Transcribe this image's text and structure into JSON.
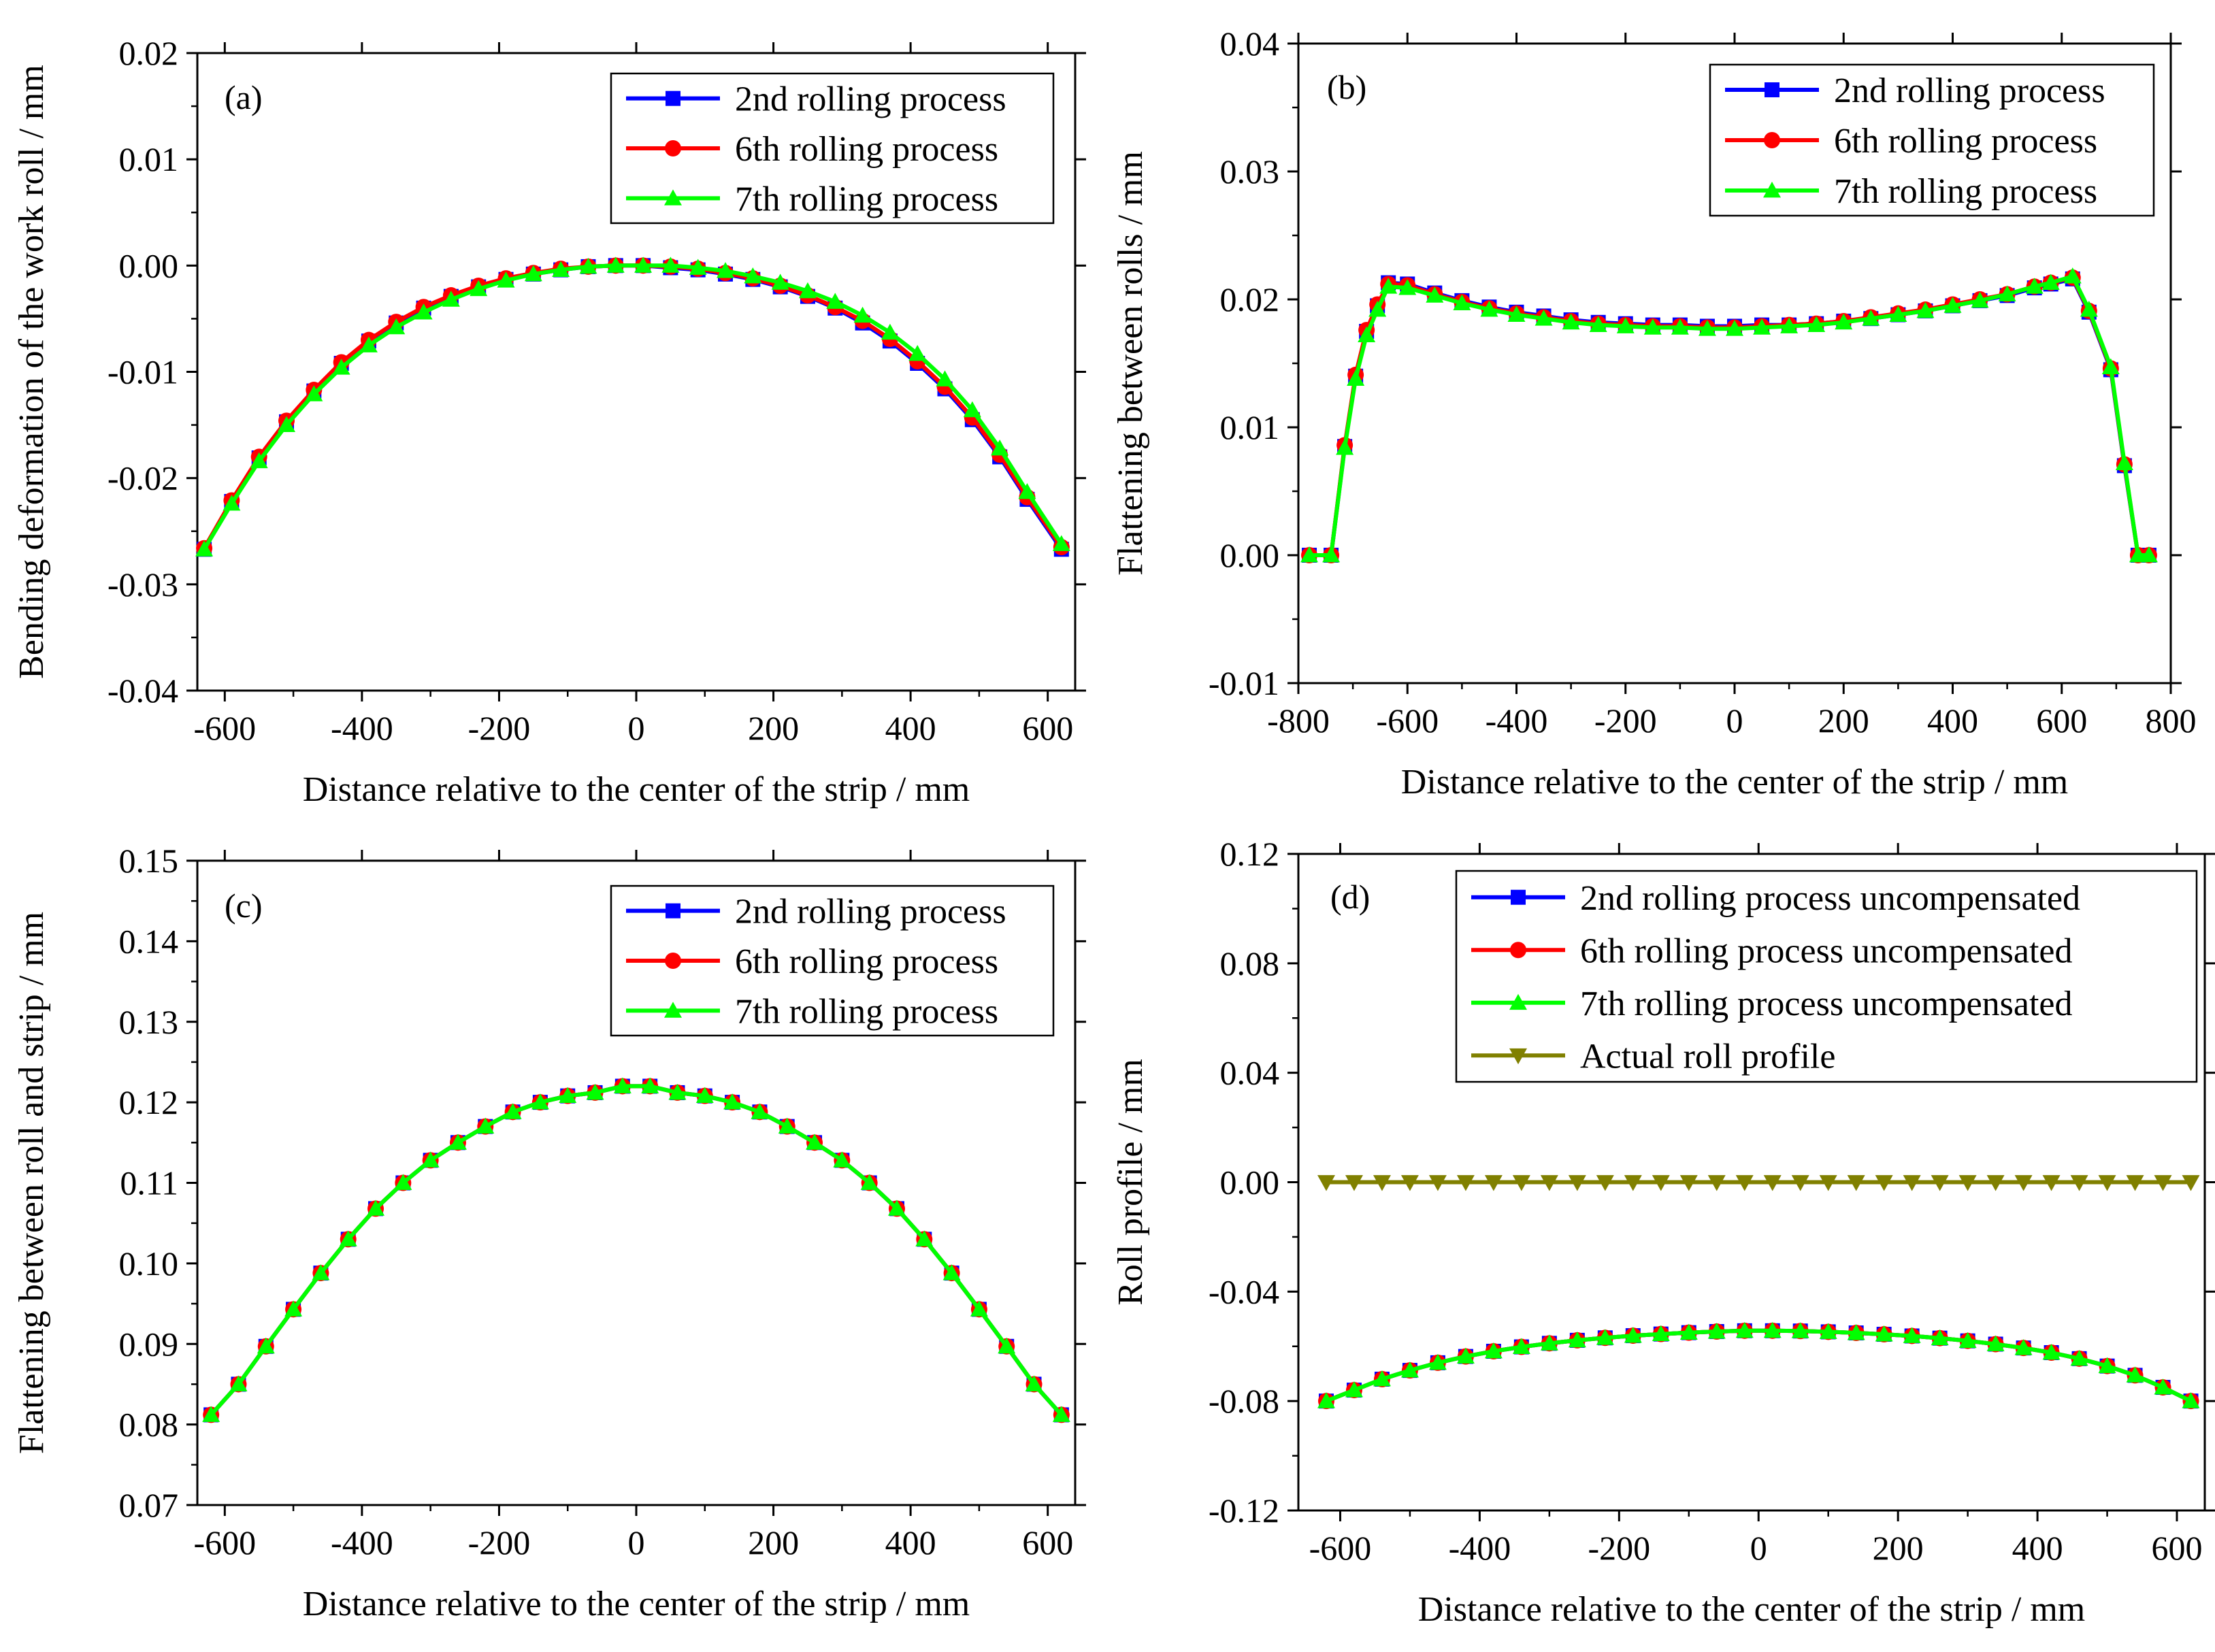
{
  "figure": {
    "description_free": true,
    "marker_legend": {
      "square": "square-marker",
      "circle": "circle-marker",
      "triangle": "triangle-marker",
      "triangle-down": "triangle-down-marker"
    }
  },
  "chart_data": [
    {
      "panel": "a",
      "type": "line",
      "label": "(a)",
      "xlabel": "Distance relative to the center of the strip / mm",
      "ylabel": "Bending deformation of the work roll / mm",
      "xlim": [
        -640,
        640
      ],
      "ylim": [
        -0.04,
        0.02
      ],
      "xticks": [
        -600,
        -400,
        -200,
        0,
        200,
        400,
        600
      ],
      "xtick_labels": [
        "-600",
        "-400",
        "-200",
        "0",
        "200",
        "400",
        "600"
      ],
      "yticks": [
        -0.04,
        -0.03,
        -0.02,
        -0.01,
        0.0,
        0.01,
        0.02
      ],
      "ytick_labels": [
        "-0.04",
        "-0.03",
        "-0.02",
        "-0.01",
        "0.00",
        "0.01",
        "0.02"
      ],
      "legend_position": "top-right",
      "x": [
        -630,
        -590,
        -550,
        -510,
        -470,
        -430,
        -390,
        -350,
        -310,
        -270,
        -230,
        -190,
        -150,
        -110,
        -70,
        -30,
        10,
        50,
        90,
        130,
        170,
        210,
        250,
        290,
        330,
        370,
        410,
        450,
        490,
        530,
        570,
        620
      ],
      "series": [
        {
          "name": "2nd rolling process",
          "color": "#0000ff",
          "marker": "square",
          "values": [
            -0.0267,
            -0.0222,
            -0.0181,
            -0.0147,
            -0.0118,
            -0.0092,
            -0.0071,
            -0.0054,
            -0.004,
            -0.0029,
            -0.002,
            -0.0013,
            -0.0008,
            -0.0004,
            -0.0001,
            0.0,
            0.0,
            -0.0002,
            -0.0004,
            -0.0008,
            -0.0013,
            -0.002,
            -0.0029,
            -0.004,
            -0.0054,
            -0.0071,
            -0.0092,
            -0.0116,
            -0.0145,
            -0.018,
            -0.022,
            -0.0267
          ]
        },
        {
          "name": "6th rolling process",
          "color": "#ff0000",
          "marker": "circle",
          "values": [
            -0.0266,
            -0.0221,
            -0.018,
            -0.0146,
            -0.0117,
            -0.0091,
            -0.007,
            -0.0053,
            -0.0039,
            -0.0028,
            -0.0019,
            -0.0012,
            -0.0007,
            -0.0003,
            -0.0001,
            0.0,
            0.0,
            -0.0001,
            -0.0003,
            -0.0007,
            -0.0012,
            -0.0019,
            -0.0028,
            -0.0039,
            -0.0052,
            -0.0069,
            -0.009,
            -0.0114,
            -0.0143,
            -0.0178,
            -0.0218,
            -0.0265
          ]
        },
        {
          "name": "7th rolling process",
          "color": "#00ff00",
          "marker": "triangle",
          "values": [
            -0.0267,
            -0.0224,
            -0.0184,
            -0.015,
            -0.0121,
            -0.0096,
            -0.0075,
            -0.0058,
            -0.0044,
            -0.0032,
            -0.0022,
            -0.0014,
            -0.0008,
            -0.0004,
            -0.0001,
            0.0,
            0.0,
            0.0,
            -0.0002,
            -0.0005,
            -0.001,
            -0.0016,
            -0.0024,
            -0.0034,
            -0.0047,
            -0.0063,
            -0.0083,
            -0.0107,
            -0.0136,
            -0.0172,
            -0.0213,
            -0.0262
          ]
        }
      ]
    },
    {
      "panel": "b",
      "type": "line",
      "label": "(b)",
      "xlabel": "Distance relative to the center of the strip / mm",
      "ylabel": "Flattening between rolls / mm",
      "xlim": [
        -800,
        800
      ],
      "ylim": [
        -0.01,
        0.04
      ],
      "xticks": [
        -800,
        -600,
        -400,
        -200,
        0,
        200,
        400,
        600,
        800
      ],
      "xtick_labels": [
        "-800",
        "-600",
        "-400",
        "-200",
        "0",
        "200",
        "400",
        "600",
        "800"
      ],
      "yticks": [
        -0.01,
        0.0,
        0.01,
        0.02,
        0.03,
        0.04
      ],
      "ytick_labels": [
        "-0.01",
        "0.00",
        "0.01",
        "0.02",
        "0.03",
        "0.04"
      ],
      "legend_position": "top-right",
      "x": [
        -780,
        -740,
        -715,
        -695,
        -675,
        -655,
        -635,
        -600,
        -550,
        -500,
        -450,
        -400,
        -350,
        -300,
        -250,
        -200,
        -150,
        -100,
        -50,
        0,
        50,
        100,
        150,
        200,
        250,
        300,
        350,
        400,
        450,
        500,
        550,
        580,
        620,
        650,
        690,
        715,
        740,
        760
      ],
      "series": [
        {
          "name": "2nd rolling process",
          "color": "#0000ff",
          "marker": "square",
          "values": [
            0.0,
            0.0,
            0.0085,
            0.014,
            0.0175,
            0.0195,
            0.0213,
            0.0212,
            0.0205,
            0.0199,
            0.0194,
            0.019,
            0.0187,
            0.0184,
            0.0182,
            0.0181,
            0.018,
            0.018,
            0.0179,
            0.0179,
            0.018,
            0.018,
            0.0181,
            0.0183,
            0.0185,
            0.0188,
            0.0191,
            0.0195,
            0.0199,
            0.0203,
            0.0209,
            0.0212,
            0.0216,
            0.019,
            0.0145,
            0.007,
            0.0,
            0.0
          ]
        },
        {
          "name": "6th rolling process",
          "color": "#ff0000",
          "marker": "circle",
          "values": [
            0.0,
            0.0,
            0.0086,
            0.0141,
            0.0176,
            0.0196,
            0.0212,
            0.0211,
            0.0204,
            0.0198,
            0.0193,
            0.0189,
            0.0186,
            0.0183,
            0.0181,
            0.018,
            0.0179,
            0.0179,
            0.0178,
            0.0178,
            0.0179,
            0.018,
            0.0181,
            0.0183,
            0.0186,
            0.0189,
            0.0192,
            0.0196,
            0.02,
            0.0204,
            0.021,
            0.0213,
            0.0217,
            0.0191,
            0.0146,
            0.0071,
            0.0,
            0.0
          ]
        },
        {
          "name": "7th rolling process",
          "color": "#00ff00",
          "marker": "triangle",
          "values": [
            0.0,
            0.0,
            0.0084,
            0.0138,
            0.0172,
            0.0192,
            0.021,
            0.0209,
            0.0203,
            0.0197,
            0.0192,
            0.0188,
            0.0185,
            0.0182,
            0.018,
            0.0179,
            0.0178,
            0.0178,
            0.0177,
            0.0177,
            0.0178,
            0.0179,
            0.018,
            0.0182,
            0.0185,
            0.0188,
            0.0191,
            0.0195,
            0.0199,
            0.0204,
            0.021,
            0.0213,
            0.0218,
            0.0192,
            0.0147,
            0.0072,
            0.0,
            0.0
          ]
        }
      ]
    },
    {
      "panel": "c",
      "type": "line",
      "label": "(c)",
      "xlabel": "Distance relative to the center of the strip / mm",
      "ylabel": "Flattening between roll and strip / mm",
      "xlim": [
        -640,
        640
      ],
      "ylim": [
        0.07,
        0.15
      ],
      "xticks": [
        -600,
        -400,
        -200,
        0,
        200,
        400,
        600
      ],
      "xtick_labels": [
        "-600",
        "-400",
        "-200",
        "0",
        "200",
        "400",
        "600"
      ],
      "yticks": [
        0.07,
        0.08,
        0.09,
        0.1,
        0.11,
        0.12,
        0.13,
        0.14,
        0.15
      ],
      "ytick_labels": [
        "0.07",
        "0.08",
        "0.09",
        "0.10",
        "0.11",
        "0.12",
        "0.13",
        "0.14",
        "0.15"
      ],
      "legend_position": "top-right",
      "x": [
        -620,
        -580,
        -540,
        -500,
        -460,
        -420,
        -380,
        -340,
        -300,
        -260,
        -220,
        -180,
        -140,
        -100,
        -60,
        -20,
        20,
        60,
        100,
        140,
        180,
        220,
        260,
        300,
        340,
        380,
        420,
        460,
        500,
        540,
        580,
        620
      ],
      "series": [
        {
          "name": "2nd rolling process",
          "color": "#0000ff",
          "marker": "square",
          "values": [
            0.0812,
            0.085,
            0.0897,
            0.0943,
            0.0988,
            0.103,
            0.1068,
            0.11,
            0.1128,
            0.115,
            0.117,
            0.1188,
            0.12,
            0.1208,
            0.1212,
            0.122,
            0.122,
            0.1212,
            0.1208,
            0.12,
            0.1188,
            0.117,
            0.115,
            0.1128,
            0.11,
            0.1068,
            0.103,
            0.0988,
            0.0943,
            0.0897,
            0.085,
            0.0812
          ]
        },
        {
          "name": "6th rolling process",
          "color": "#ff0000",
          "marker": "circle",
          "values": [
            0.0812,
            0.085,
            0.0897,
            0.0943,
            0.0988,
            0.103,
            0.1068,
            0.11,
            0.1128,
            0.115,
            0.117,
            0.1188,
            0.12,
            0.1208,
            0.1212,
            0.122,
            0.122,
            0.1212,
            0.1208,
            0.12,
            0.1188,
            0.117,
            0.115,
            0.1128,
            0.11,
            0.1068,
            0.103,
            0.0988,
            0.0943,
            0.0897,
            0.085,
            0.0812
          ]
        },
        {
          "name": "7th rolling process",
          "color": "#00ff00",
          "marker": "triangle",
          "values": [
            0.0812,
            0.085,
            0.0897,
            0.0943,
            0.0988,
            0.103,
            0.1068,
            0.11,
            0.1128,
            0.115,
            0.117,
            0.1188,
            0.12,
            0.1208,
            0.1212,
            0.122,
            0.122,
            0.1212,
            0.1208,
            0.12,
            0.1188,
            0.117,
            0.115,
            0.1128,
            0.11,
            0.1068,
            0.103,
            0.0988,
            0.0943,
            0.0897,
            0.085,
            0.0812
          ]
        }
      ]
    },
    {
      "panel": "d",
      "type": "line",
      "label": "(d)",
      "xlabel": "Distance relative to the center of the strip / mm",
      "ylabel": "Roll profile / mm",
      "xlim": [
        -660,
        640
      ],
      "ylim": [
        -0.12,
        0.12
      ],
      "xticks": [
        -600,
        -400,
        -200,
        0,
        200,
        400,
        600
      ],
      "xtick_labels": [
        "-600",
        "-400",
        "-200",
        "0",
        "200",
        "400",
        "600"
      ],
      "yticks": [
        -0.12,
        -0.08,
        -0.04,
        0.0,
        0.04,
        0.08,
        0.12
      ],
      "ytick_labels": [
        "-0.12",
        "-0.08",
        "-0.04",
        "0.00",
        "0.04",
        "0.08",
        "0.12"
      ],
      "legend_position": "top-right",
      "x": [
        -620,
        -580,
        -540,
        -500,
        -460,
        -420,
        -380,
        -340,
        -300,
        -260,
        -220,
        -180,
        -140,
        -100,
        -60,
        -20,
        20,
        60,
        100,
        140,
        180,
        220,
        260,
        300,
        340,
        380,
        420,
        460,
        500,
        540,
        580,
        620
      ],
      "series": [
        {
          "name": "2nd rolling process uncompensated",
          "color": "#0000ff",
          "marker": "square",
          "values": [
            -0.08,
            -0.076,
            -0.072,
            -0.0688,
            -0.066,
            -0.0637,
            -0.0618,
            -0.0602,
            -0.0589,
            -0.0578,
            -0.0569,
            -0.0561,
            -0.0555,
            -0.055,
            -0.0546,
            -0.0543,
            -0.0543,
            -0.0544,
            -0.0547,
            -0.0551,
            -0.0556,
            -0.0562,
            -0.057,
            -0.058,
            -0.0592,
            -0.0606,
            -0.0623,
            -0.0645,
            -0.0672,
            -0.0706,
            -0.075,
            -0.08
          ]
        },
        {
          "name": "6th rolling process uncompensated",
          "color": "#ff0000",
          "marker": "circle",
          "values": [
            -0.08,
            -0.076,
            -0.072,
            -0.0688,
            -0.066,
            -0.0637,
            -0.0618,
            -0.0602,
            -0.0589,
            -0.0578,
            -0.0569,
            -0.0561,
            -0.0555,
            -0.055,
            -0.0546,
            -0.0543,
            -0.0543,
            -0.0544,
            -0.0547,
            -0.0551,
            -0.0556,
            -0.0562,
            -0.057,
            -0.058,
            -0.0592,
            -0.0606,
            -0.0623,
            -0.0645,
            -0.0672,
            -0.0706,
            -0.075,
            -0.08
          ]
        },
        {
          "name": "7th rolling process uncompensated",
          "color": "#00ff00",
          "marker": "triangle",
          "values": [
            -0.08,
            -0.076,
            -0.072,
            -0.0688,
            -0.066,
            -0.0637,
            -0.0618,
            -0.0602,
            -0.0589,
            -0.0578,
            -0.0569,
            -0.0561,
            -0.0555,
            -0.055,
            -0.0546,
            -0.0543,
            -0.0543,
            -0.0544,
            -0.0547,
            -0.0551,
            -0.0556,
            -0.0562,
            -0.057,
            -0.058,
            -0.0592,
            -0.0606,
            -0.0623,
            -0.0645,
            -0.0672,
            -0.0706,
            -0.075,
            -0.08
          ]
        },
        {
          "name": "Actual roll profile",
          "color": "#808000",
          "marker": "triangle-down",
          "values": [
            0.0,
            0.0,
            0.0,
            0.0,
            0.0,
            0.0,
            0.0,
            0.0,
            0.0,
            0.0,
            0.0,
            0.0,
            0.0,
            0.0,
            0.0,
            0.0,
            0.0,
            0.0,
            0.0,
            0.0,
            0.0,
            0.0,
            0.0,
            0.0,
            0.0,
            0.0,
            0.0,
            0.0,
            0.0,
            0.0,
            0.0,
            0.0
          ]
        }
      ]
    }
  ]
}
